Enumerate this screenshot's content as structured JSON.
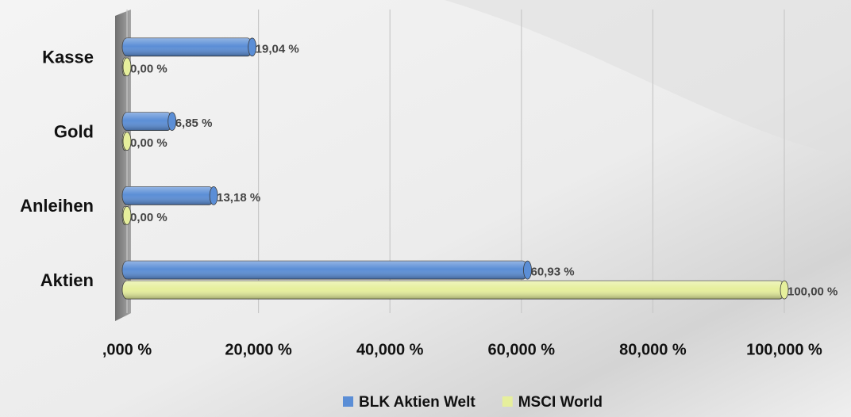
{
  "chart_data": {
    "type": "bar",
    "orientation": "horizontal",
    "categories": [
      "Kasse",
      "Gold",
      "Anleihen",
      "Aktien"
    ],
    "series": [
      {
        "name": "BLK Aktien Welt",
        "color": "#5b8ed6",
        "values": [
          19.04,
          6.85,
          13.18,
          60.93
        ],
        "value_labels": [
          "19,04 %",
          "6,85 %",
          "13,18 %",
          "60,93 %"
        ]
      },
      {
        "name": "MSCI World",
        "color": "#e6ef9c",
        "values": [
          0,
          0,
          0,
          100
        ],
        "value_labels": [
          "0,00 %",
          "0,00 %",
          "0,00 %",
          "100,00 %"
        ]
      }
    ],
    "xlim": [
      0,
      100
    ],
    "xticks": [
      {
        "value": 0,
        "label": ",000 %"
      },
      {
        "value": 20,
        "label": "20,000 %"
      },
      {
        "value": 40,
        "label": "40,000 %"
      },
      {
        "value": 60,
        "label": "60,000 %"
      },
      {
        "value": 80,
        "label": "80,000 %"
      },
      {
        "value": 100,
        "label": "100,000 %"
      }
    ],
    "grid": true,
    "legend": "bottom"
  }
}
